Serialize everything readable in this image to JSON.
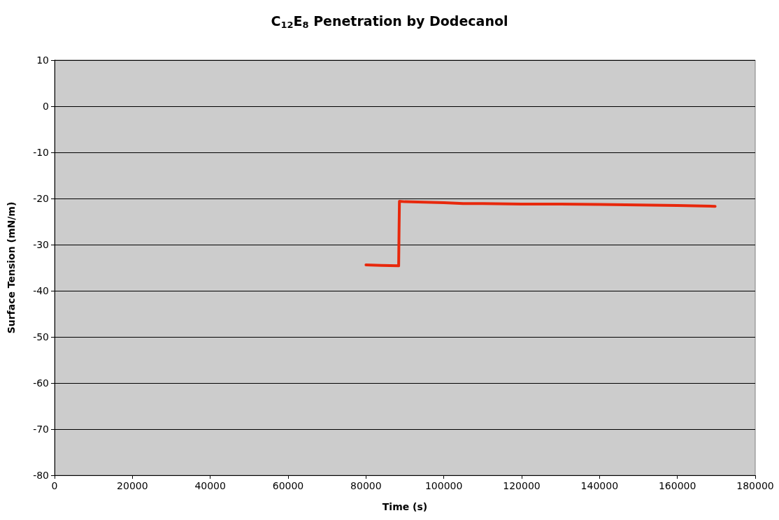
{
  "chart_data": {
    "type": "line",
    "title": "C$_{12}$E$_{8}$ Penetration by Dodecanol",
    "xlabel": "Time (s)",
    "ylabel": "Surface Tension (mN/m)",
    "series": [
      {
        "color": "#e8280c",
        "x": [
          80000,
          84000,
          88400,
          88500,
          88600,
          90000,
          95000,
          100000,
          105000,
          110000,
          120000,
          130000,
          140000,
          150000,
          160000,
          169700
        ],
        "values": [
          -34.4,
          -34.5,
          -34.6,
          -27,
          -20.6,
          -20.7,
          -20.8,
          -20.9,
          -21.1,
          -21.1,
          -21.2,
          -21.2,
          -21.3,
          -21.4,
          -21.5,
          -21.7
        ]
      }
    ],
    "xlim": [
      0,
      180000
    ],
    "xticks": [
      0,
      20000,
      40000,
      60000,
      80000,
      100000,
      120000,
      140000,
      160000,
      180000
    ],
    "ylim": [
      -80,
      10
    ],
    "yticks": [
      -80,
      -70,
      -60,
      -50,
      -40,
      -30,
      -20,
      -10,
      0,
      10
    ],
    "grid": "y",
    "marker": "none",
    "line_style": "solid"
  }
}
